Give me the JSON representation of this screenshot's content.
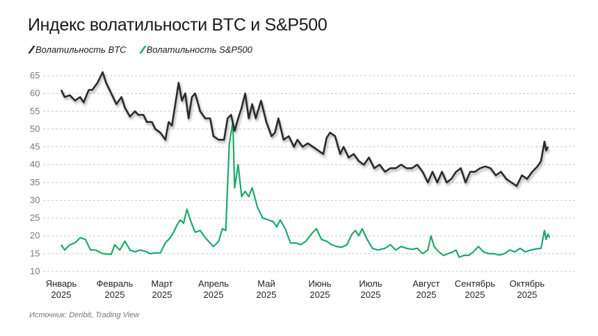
{
  "chart_data": {
    "type": "line",
    "title": "Индекс волатильности BTC и S&P500",
    "source": "Источник: Deribit, Trading View",
    "ylim": [
      10,
      65
    ],
    "yticks": [
      10,
      15,
      20,
      25,
      30,
      35,
      40,
      45,
      50,
      55,
      60,
      65
    ],
    "grid": true,
    "legend_placement": "top-left",
    "xtick_labels": [
      [
        "Январь",
        "2025"
      ],
      [
        "Февраль",
        "2025"
      ],
      [
        "Март",
        "2025"
      ],
      [
        "Апрель",
        "2025"
      ],
      [
        "Май",
        "2025"
      ],
      [
        "Июнь",
        "2025"
      ],
      [
        "Июль",
        "2025"
      ],
      [
        "Август",
        "2025"
      ],
      [
        "Сентябрь",
        "2025"
      ],
      [
        "Октябрь",
        "2025"
      ]
    ],
    "xticks": [
      "2025-01-01",
      "2025-02-01",
      "2025-03-01",
      "2025-04-01",
      "2025-05-01",
      "2025-06-01",
      "2025-07-01",
      "2025-08-01",
      "2025-09-01",
      "2025-10-01"
    ],
    "series": [
      {
        "name": "Волатильность BTC",
        "color": "#2b2b2b",
        "points": [
          [
            "2025-01-01",
            61
          ],
          [
            "2025-01-03",
            59
          ],
          [
            "2025-01-06",
            59.5
          ],
          [
            "2025-01-09",
            58
          ],
          [
            "2025-01-12",
            59
          ],
          [
            "2025-01-14",
            57.5
          ],
          [
            "2025-01-17",
            61
          ],
          [
            "2025-01-19",
            61
          ],
          [
            "2025-01-22",
            63
          ],
          [
            "2025-01-25",
            66
          ],
          [
            "2025-01-27",
            63
          ],
          [
            "2025-01-30",
            60
          ],
          [
            "2025-02-02",
            57
          ],
          [
            "2025-02-05",
            59
          ],
          [
            "2025-02-07",
            56
          ],
          [
            "2025-02-10",
            53.5
          ],
          [
            "2025-02-13",
            55
          ],
          [
            "2025-02-15",
            54
          ],
          [
            "2025-02-18",
            54
          ],
          [
            "2025-02-20",
            52
          ],
          [
            "2025-02-23",
            52
          ],
          [
            "2025-02-25",
            50
          ],
          [
            "2025-02-28",
            49
          ],
          [
            "2025-03-03",
            47
          ],
          [
            "2025-03-05",
            52
          ],
          [
            "2025-03-07",
            51
          ],
          [
            "2025-03-09",
            57
          ],
          [
            "2025-03-11",
            63
          ],
          [
            "2025-03-13",
            58
          ],
          [
            "2025-03-15",
            60
          ],
          [
            "2025-03-17",
            53
          ],
          [
            "2025-03-19",
            59
          ],
          [
            "2025-03-21",
            60
          ],
          [
            "2025-03-24",
            55
          ],
          [
            "2025-03-27",
            53
          ],
          [
            "2025-03-30",
            53
          ],
          [
            "2025-04-01",
            48
          ],
          [
            "2025-04-04",
            47
          ],
          [
            "2025-04-07",
            47
          ],
          [
            "2025-04-09",
            53
          ],
          [
            "2025-04-11",
            54
          ],
          [
            "2025-04-13",
            49.5
          ],
          [
            "2025-04-15",
            53
          ],
          [
            "2025-04-17",
            56
          ],
          [
            "2025-04-19",
            60
          ],
          [
            "2025-04-21",
            53
          ],
          [
            "2025-04-23",
            57
          ],
          [
            "2025-04-25",
            53
          ],
          [
            "2025-04-28",
            58
          ],
          [
            "2025-05-01",
            52
          ],
          [
            "2025-05-04",
            48
          ],
          [
            "2025-05-06",
            49
          ],
          [
            "2025-05-08",
            53
          ],
          [
            "2025-05-11",
            47
          ],
          [
            "2025-05-14",
            48
          ],
          [
            "2025-05-17",
            45
          ],
          [
            "2025-05-19",
            47
          ],
          [
            "2025-05-22",
            45
          ],
          [
            "2025-05-25",
            46
          ],
          [
            "2025-05-28",
            45
          ],
          [
            "2025-05-31",
            44
          ],
          [
            "2025-06-03",
            43
          ],
          [
            "2025-06-05",
            47.5
          ],
          [
            "2025-06-07",
            49
          ],
          [
            "2025-06-10",
            48
          ],
          [
            "2025-06-13",
            43
          ],
          [
            "2025-06-15",
            45
          ],
          [
            "2025-06-18",
            42
          ],
          [
            "2025-06-21",
            43
          ],
          [
            "2025-06-24",
            41
          ],
          [
            "2025-06-27",
            40
          ],
          [
            "2025-06-30",
            42
          ],
          [
            "2025-07-03",
            39
          ],
          [
            "2025-07-06",
            40
          ],
          [
            "2025-07-09",
            38
          ],
          [
            "2025-07-12",
            39
          ],
          [
            "2025-07-15",
            39
          ],
          [
            "2025-07-18",
            40
          ],
          [
            "2025-07-21",
            39
          ],
          [
            "2025-07-24",
            39
          ],
          [
            "2025-07-27",
            40
          ],
          [
            "2025-07-30",
            38
          ],
          [
            "2025-08-02",
            35
          ],
          [
            "2025-08-05",
            38
          ],
          [
            "2025-08-08",
            35
          ],
          [
            "2025-08-11",
            38
          ],
          [
            "2025-08-14",
            35
          ],
          [
            "2025-08-17",
            36
          ],
          [
            "2025-08-20",
            38
          ],
          [
            "2025-08-23",
            39
          ],
          [
            "2025-08-26",
            35
          ],
          [
            "2025-08-29",
            38
          ],
          [
            "2025-09-01",
            38
          ],
          [
            "2025-09-04",
            39
          ],
          [
            "2025-09-07",
            39.5
          ],
          [
            "2025-09-10",
            39
          ],
          [
            "2025-09-13",
            37
          ],
          [
            "2025-09-16",
            38
          ],
          [
            "2025-09-19",
            36
          ],
          [
            "2025-09-22",
            35
          ],
          [
            "2025-09-25",
            34
          ],
          [
            "2025-09-28",
            37
          ],
          [
            "2025-10-01",
            36
          ],
          [
            "2025-10-04",
            38
          ],
          [
            "2025-10-07",
            39.5
          ],
          [
            "2025-10-09",
            41
          ],
          [
            "2025-10-11",
            46.5
          ],
          [
            "2025-10-12",
            44
          ],
          [
            "2025-10-13",
            45
          ]
        ]
      },
      {
        "name": "Волатильность S&P500",
        "color": "#1aaa6a",
        "points": [
          [
            "2025-01-01",
            17.5
          ],
          [
            "2025-01-03",
            16
          ],
          [
            "2025-01-06",
            17.5
          ],
          [
            "2025-01-09",
            18
          ],
          [
            "2025-01-12",
            19.5
          ],
          [
            "2025-01-15",
            19
          ],
          [
            "2025-01-18",
            16
          ],
          [
            "2025-01-21",
            16
          ],
          [
            "2025-01-25",
            15
          ],
          [
            "2025-01-30",
            14.8
          ],
          [
            "2025-02-01",
            17.5
          ],
          [
            "2025-02-04",
            16
          ],
          [
            "2025-02-07",
            18.5
          ],
          [
            "2025-02-10",
            16
          ],
          [
            "2025-02-13",
            15.5
          ],
          [
            "2025-02-16",
            16
          ],
          [
            "2025-02-19",
            15.7
          ],
          [
            "2025-02-22",
            15
          ],
          [
            "2025-02-25",
            15.2
          ],
          [
            "2025-02-28",
            15.2
          ],
          [
            "2025-03-03",
            18
          ],
          [
            "2025-03-06",
            19.5
          ],
          [
            "2025-03-08",
            21
          ],
          [
            "2025-03-10",
            23
          ],
          [
            "2025-03-12",
            24.5
          ],
          [
            "2025-03-14",
            23.5
          ],
          [
            "2025-03-16",
            27.5
          ],
          [
            "2025-03-18",
            24.5
          ],
          [
            "2025-03-21",
            21
          ],
          [
            "2025-03-24",
            21.5
          ],
          [
            "2025-03-27",
            19.5
          ],
          [
            "2025-03-30",
            18
          ],
          [
            "2025-04-01",
            17
          ],
          [
            "2025-04-04",
            18.5
          ],
          [
            "2025-04-06",
            22
          ],
          [
            "2025-04-08",
            21.5
          ],
          [
            "2025-04-10",
            46
          ],
          [
            "2025-04-12",
            52
          ],
          [
            "2025-04-13",
            33.5
          ],
          [
            "2025-04-15",
            40
          ],
          [
            "2025-04-17",
            31
          ],
          [
            "2025-04-19",
            32.5
          ],
          [
            "2025-04-21",
            31
          ],
          [
            "2025-04-23",
            33.5
          ],
          [
            "2025-04-26",
            28
          ],
          [
            "2025-04-29",
            25
          ],
          [
            "2025-05-02",
            24.5
          ],
          [
            "2025-05-05",
            24
          ],
          [
            "2025-05-07",
            22.5
          ],
          [
            "2025-05-09",
            24.5
          ],
          [
            "2025-05-12",
            22
          ],
          [
            "2025-05-15",
            18
          ],
          [
            "2025-05-18",
            18
          ],
          [
            "2025-05-21",
            17.5
          ],
          [
            "2025-05-24",
            18.5
          ],
          [
            "2025-05-27",
            20.5
          ],
          [
            "2025-05-30",
            22
          ],
          [
            "2025-06-02",
            19
          ],
          [
            "2025-06-05",
            18.5
          ],
          [
            "2025-06-08",
            17.5
          ],
          [
            "2025-06-11",
            17
          ],
          [
            "2025-06-14",
            16.8
          ],
          [
            "2025-06-17",
            17.5
          ],
          [
            "2025-06-20",
            20.5
          ],
          [
            "2025-06-22",
            21.5
          ],
          [
            "2025-06-24",
            20
          ],
          [
            "2025-06-26",
            22
          ],
          [
            "2025-06-29",
            19
          ],
          [
            "2025-07-02",
            16.5
          ],
          [
            "2025-07-05",
            16
          ],
          [
            "2025-07-09",
            16.5
          ],
          [
            "2025-07-12",
            17.5
          ],
          [
            "2025-07-15",
            16
          ],
          [
            "2025-07-18",
            17
          ],
          [
            "2025-07-21",
            16.5
          ],
          [
            "2025-07-24",
            16.2
          ],
          [
            "2025-07-27",
            16.5
          ],
          [
            "2025-07-30",
            15
          ],
          [
            "2025-08-02",
            16
          ],
          [
            "2025-08-04",
            20
          ],
          [
            "2025-08-06",
            17
          ],
          [
            "2025-08-09",
            15.5
          ],
          [
            "2025-08-12",
            14.5
          ],
          [
            "2025-08-15",
            15
          ],
          [
            "2025-08-18",
            15.5
          ],
          [
            "2025-08-20",
            16
          ],
          [
            "2025-08-22",
            14
          ],
          [
            "2025-08-25",
            14.5
          ],
          [
            "2025-08-28",
            14.5
          ],
          [
            "2025-08-31",
            15.5
          ],
          [
            "2025-09-03",
            17
          ],
          [
            "2025-09-06",
            15.5
          ],
          [
            "2025-09-09",
            15
          ],
          [
            "2025-09-12",
            15
          ],
          [
            "2025-09-15",
            14.6
          ],
          [
            "2025-09-18",
            15
          ],
          [
            "2025-09-21",
            16
          ],
          [
            "2025-09-24",
            15.5
          ],
          [
            "2025-09-27",
            16.5
          ],
          [
            "2025-09-30",
            15.5
          ],
          [
            "2025-10-03",
            16
          ],
          [
            "2025-10-06",
            16.3
          ],
          [
            "2025-10-09",
            16.5
          ],
          [
            "2025-10-11",
            21.5
          ],
          [
            "2025-10-12",
            19
          ],
          [
            "2025-10-13",
            20.5
          ],
          [
            "2025-10-14",
            19.5
          ]
        ]
      }
    ]
  }
}
